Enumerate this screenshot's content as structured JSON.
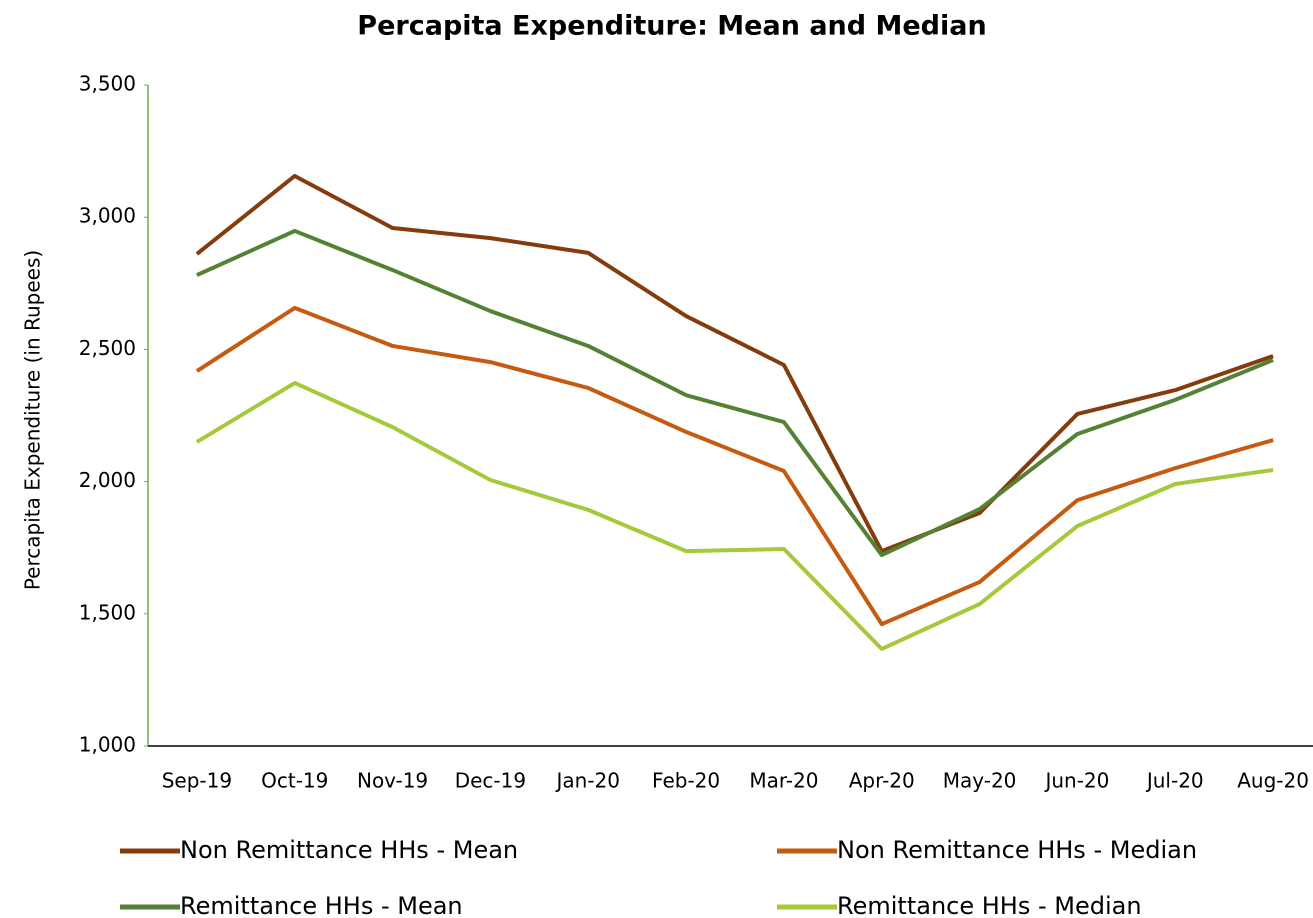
{
  "chart_data": {
    "type": "line",
    "title": "Percapita Expenditure: Mean and Median",
    "y_label": "Percapita Expenditure (in Rupees)",
    "categories": [
      "Sep-19",
      "Oct-19",
      "Nov-19",
      "Dec-19",
      "Jan-20",
      "Feb-20",
      "Mar-20",
      "Apr-20",
      "May-20",
      "Jun-20",
      "Jul-20",
      "Aug-20"
    ],
    "series": [
      {
        "name": "Non Remittance HHs - Mean",
        "color": "#843c0c",
        "values": [
          2861,
          3156,
          2959,
          2921,
          2865,
          2626,
          2441,
          1737,
          1881,
          2256,
          2346,
          2475
        ]
      },
      {
        "name": "Non Remittance HHs - Median",
        "color": "#c55a11",
        "values": [
          2418,
          2657,
          2513,
          2452,
          2354,
          2188,
          2040,
          1461,
          1620,
          1930,
          2051,
          2157
        ]
      },
      {
        "name": "Remittance HHs - Mean",
        "color": "#548235",
        "values": [
          2781,
          2948,
          2800,
          2645,
          2513,
          2327,
          2225,
          1722,
          1896,
          2180,
          2309,
          2460
        ]
      },
      {
        "name": "Remittance HHs - Median",
        "color": "#a5c93a",
        "values": [
          2150,
          2373,
          2206,
          2006,
          1893,
          1737,
          1745,
          1367,
          1537,
          1832,
          1991,
          2044
        ]
      }
    ],
    "ylim": [
      1000,
      3500
    ],
    "yticks": [
      {
        "value": 1000,
        "label": "1,000"
      },
      {
        "value": 1500,
        "label": "1,500"
      },
      {
        "value": 2000,
        "label": "2,000"
      },
      {
        "value": 2500,
        "label": "2,500"
      },
      {
        "value": 3000,
        "label": "3,000"
      },
      {
        "value": 3500,
        "label": "3,500"
      }
    ],
    "grid": false,
    "legend": "bottom"
  }
}
